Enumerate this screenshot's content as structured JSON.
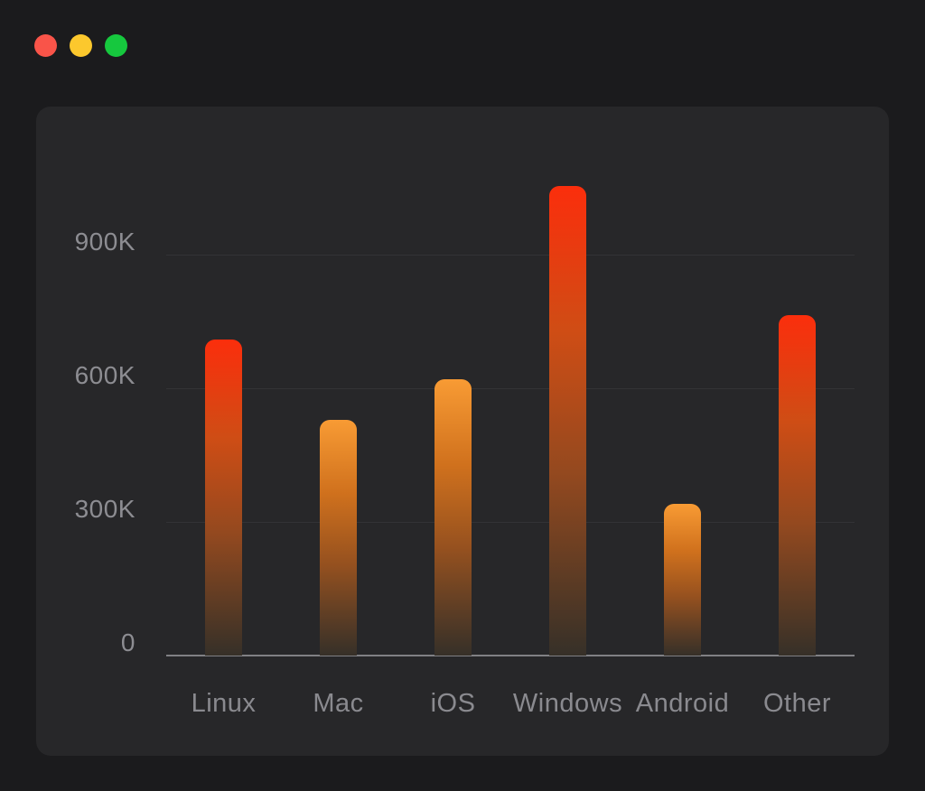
{
  "window": {
    "background": "#1b1b1d",
    "controls": [
      {
        "name": "close",
        "color": "#f95449"
      },
      {
        "name": "minimize",
        "color": "#fcc82d"
      },
      {
        "name": "zoom",
        "color": "#16c83e"
      }
    ]
  },
  "card": {
    "background": "#272729",
    "border_radius": "16px"
  },
  "chart_data": {
    "type": "bar",
    "title": "",
    "xlabel": "",
    "ylabel": "",
    "categories": [
      "Linux",
      "Mac",
      "iOS",
      "Windows",
      "Android",
      "Other"
    ],
    "values": [
      710000,
      530000,
      620000,
      1055000,
      340000,
      765000
    ],
    "bar_tones": [
      "red",
      "orange",
      "orange",
      "red",
      "orange",
      "red"
    ],
    "y_ticks": [
      {
        "label": "900K",
        "value": 900000
      },
      {
        "label": "600K",
        "value": 600000
      },
      {
        "label": "300K",
        "value": 300000
      },
      {
        "label": "0",
        "value": 0
      }
    ],
    "ylim": [
      0,
      1100000
    ],
    "grid": true,
    "legend": false,
    "colors": {
      "gradient_red": [
        "#fb2e0c",
        "#cf4d15",
        "#94491f",
        "#5c3b24",
        "#363028"
      ],
      "gradient_orange": [
        "#f89b34",
        "#d0711d",
        "#96511f",
        "#5c3d25",
        "#363028"
      ],
      "grid_line": "#333336",
      "axis_line": "#808084",
      "tick_label": "#8d8d92"
    }
  }
}
